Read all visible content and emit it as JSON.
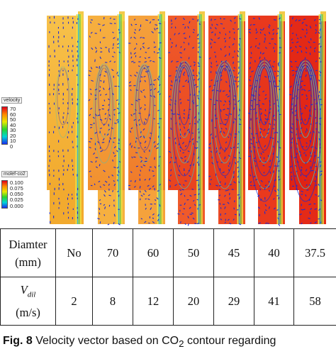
{
  "legend_velocity": {
    "title": "velocity",
    "ticks": [
      "70",
      "60",
      "50",
      "40",
      "30",
      "20",
      "10",
      "0"
    ]
  },
  "legend_co2": {
    "title": "molef-co2",
    "ticks": [
      "0.100",
      "0.075",
      "0.050",
      "0.025",
      "0.000"
    ]
  },
  "panels": [
    {
      "id": "no",
      "fill_top": "#f7c14a",
      "fill_bottom": "#f2aa2e",
      "intensity": 0.05
    },
    {
      "id": "70",
      "fill_top": "#f6b040",
      "fill_bottom": "#f19030",
      "intensity": 0.25
    },
    {
      "id": "60",
      "fill_top": "#f5a23c",
      "fill_bottom": "#ef7a2a",
      "intensity": 0.4
    },
    {
      "id": "50",
      "fill_top": "#ef5a2a",
      "fill_bottom": "#e8431f",
      "intensity": 0.6
    },
    {
      "id": "45",
      "fill_top": "#ec4a24",
      "fill_bottom": "#e63a1c",
      "intensity": 0.7
    },
    {
      "id": "40",
      "fill_top": "#e9391d",
      "fill_bottom": "#e32f18",
      "intensity": 0.8
    },
    {
      "id": "37.5",
      "fill_top": "#e42a17",
      "fill_bottom": "#df2314",
      "intensity": 0.9
    }
  ],
  "table": {
    "row1": {
      "header_line1": "Diamter",
      "header_line2": "(mm)",
      "values": [
        "No",
        "70",
        "60",
        "50",
        "45",
        "40",
        "37.5"
      ]
    },
    "row2": {
      "header_symbol": "V",
      "header_subscript": "dil",
      "header_unit": "(m/s)",
      "values": [
        "2",
        "8",
        "12",
        "20",
        "29",
        "41",
        "58"
      ]
    }
  },
  "caption": {
    "label": "Fig. 8",
    "text": "Velocity vector based on CO",
    "subscript": "2",
    "rest": " contour regarding"
  },
  "colors": {
    "vector_blue": "#1a2bd6",
    "streamline_cyan": "#38c8c8",
    "streamline_green": "#7ad24a",
    "jet_yellow": "#f0e040"
  }
}
